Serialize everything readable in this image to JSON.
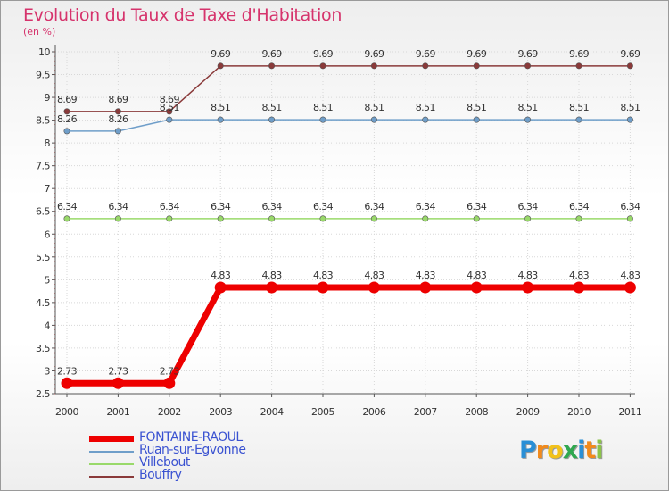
{
  "header": {
    "title": "Evolution du Taux de Taxe d'Habitation",
    "subtitle": "(en %)"
  },
  "chart_data": {
    "type": "line",
    "title": "Evolution du Taux de Taxe d'Habitation",
    "ylabel": "(en %)",
    "xlabel": "",
    "ylim": [
      2.5,
      10
    ],
    "yticks": [
      "2.5",
      "3",
      "3.5",
      "4",
      "4.5",
      "5",
      "5.5",
      "6",
      "6.5",
      "7",
      "7.5",
      "8",
      "8.5",
      "9",
      "9.5",
      "10"
    ],
    "categories": [
      "2000",
      "2001",
      "2002",
      "2003",
      "2004",
      "2005",
      "2006",
      "2007",
      "2008",
      "2009",
      "2010",
      "2011"
    ],
    "series": [
      {
        "name": "FONTAINE-RAOUL",
        "color": "#ee0000",
        "width": 7,
        "values": [
          2.73,
          2.73,
          2.73,
          4.83,
          4.83,
          4.83,
          4.83,
          4.83,
          4.83,
          4.83,
          4.83,
          4.83
        ],
        "labels": [
          "2.73",
          "2.73",
          "2.73",
          "4.83",
          "4.83",
          "4.83",
          "4.83",
          "4.83",
          "4.83",
          "4.83",
          "4.83",
          "4.83"
        ]
      },
      {
        "name": "Ruan-sur-Egvonne",
        "color": "#6f9ec9",
        "width": 1.5,
        "values": [
          8.26,
          8.26,
          8.51,
          8.51,
          8.51,
          8.51,
          8.51,
          8.51,
          8.51,
          8.51,
          8.51,
          8.51
        ],
        "labels": [
          "8.26",
          "8.26",
          "8.51",
          "8.51",
          "8.51",
          "8.51",
          "8.51",
          "8.51",
          "8.51",
          "8.51",
          "8.51",
          "8.51"
        ]
      },
      {
        "name": "Villebout",
        "color": "#99d96a",
        "width": 1.5,
        "values": [
          6.34,
          6.34,
          6.34,
          6.34,
          6.34,
          6.34,
          6.34,
          6.34,
          6.34,
          6.34,
          6.34,
          6.34
        ],
        "labels": [
          "6.34",
          "6.34",
          "6.34",
          "6.34",
          "6.34",
          "6.34",
          "6.34",
          "6.34",
          "6.34",
          "6.34",
          "6.34",
          "6.34"
        ]
      },
      {
        "name": "Bouffry",
        "color": "#8a3a3a",
        "width": 1.5,
        "values": [
          8.69,
          8.69,
          8.69,
          9.69,
          9.69,
          9.69,
          9.69,
          9.69,
          9.69,
          9.69,
          9.69,
          9.69
        ],
        "labels": [
          "8.69",
          "8.69",
          "8.69",
          "9.69",
          "9.69",
          "9.69",
          "9.69",
          "9.69",
          "9.69",
          "9.69",
          "9.69",
          "9.69"
        ]
      }
    ]
  },
  "legend": {
    "items": [
      {
        "name": "FONTAINE-RAOUL",
        "color": "#ee0000",
        "thickness": "thick"
      },
      {
        "name": "Ruan-sur-Egvonne",
        "color": "#6f9ec9",
        "thickness": "thin"
      },
      {
        "name": "Villebout",
        "color": "#99d96a",
        "thickness": "thin"
      },
      {
        "name": "Bouffry",
        "color": "#8a3a3a",
        "thickness": "thin"
      }
    ]
  },
  "logo": {
    "letters": [
      "P",
      "r",
      "o",
      "x",
      "i",
      "t",
      "i"
    ],
    "colors": [
      "#2a8fd6",
      "#f28a1b",
      "#f2c21b",
      "#2fa84f",
      "#2a8fd6",
      "#f28a1b",
      "#8bc34a"
    ]
  }
}
